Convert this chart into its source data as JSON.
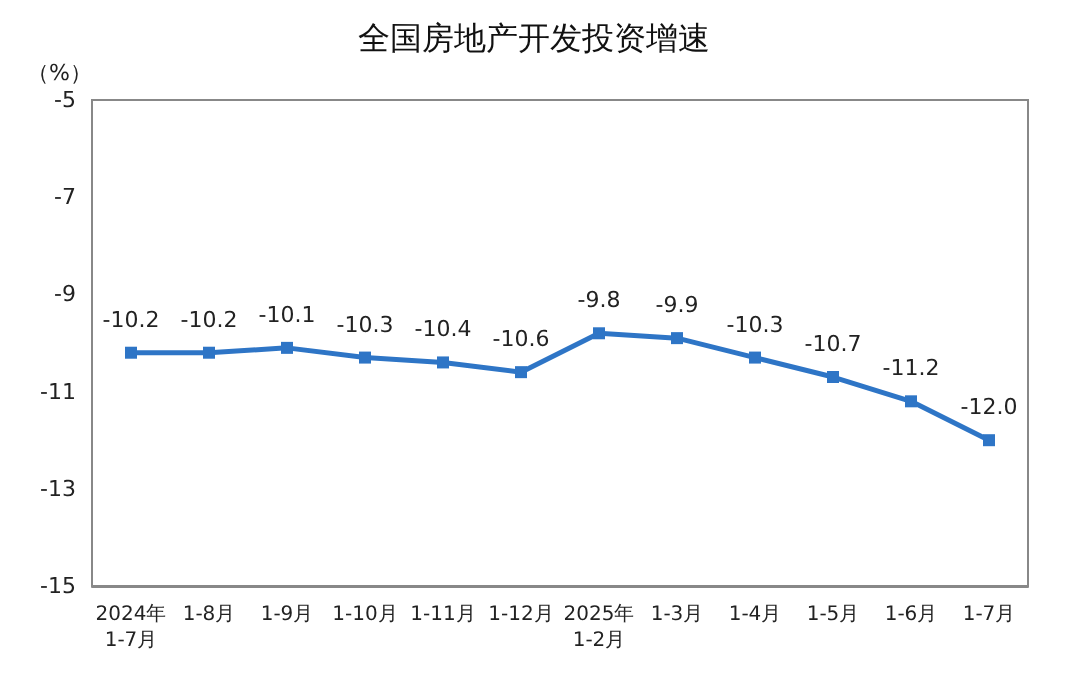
{
  "chart_data": {
    "type": "line",
    "title": "全国房地产开发投资增速",
    "ylabel": "（%）",
    "categories": [
      "2024年\n1-7月",
      "1-8月",
      "1-9月",
      "1-10月",
      "1-11月",
      "1-12月",
      "2025年\n1-2月",
      "1-3月",
      "1-4月",
      "1-5月",
      "1-6月",
      "1-7月"
    ],
    "series": [
      {
        "color": "#2e75c6",
        "values": [
          -10.2,
          -10.2,
          -10.1,
          -10.3,
          -10.4,
          -10.6,
          -9.8,
          -9.9,
          -10.3,
          -10.7,
          -11.2,
          -12.0
        ],
        "value_labels": [
          "-10.2",
          "-10.2",
          "-10.1",
          "-10.3",
          "-10.4",
          "-10.6",
          "-9.8",
          "-9.9",
          "-10.3",
          "-10.7",
          "-11.2",
          "-12.0"
        ]
      }
    ],
    "ylim": [
      -15,
      -5
    ],
    "yticks": [
      -15,
      -13,
      -11,
      -9,
      -7,
      -5
    ],
    "grid": false,
    "marker": "square",
    "line_style": "solid"
  }
}
